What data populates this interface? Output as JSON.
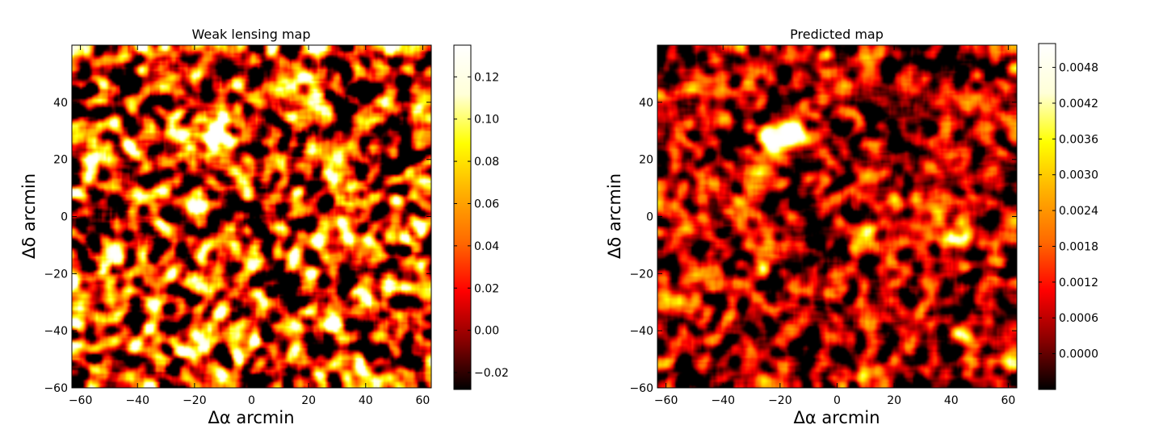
{
  "figure": {
    "colormap": "hot",
    "colormap_stops": [
      "#000000",
      "#8a0000",
      "#ff0000",
      "#ff6a00",
      "#ffb000",
      "#ffff00",
      "#ffffd8",
      "#ffffff"
    ]
  },
  "chart_data": [
    {
      "type": "heatmap",
      "title": "Weak lensing map",
      "xlabel": "Δα arcmin",
      "ylabel": "Δδ arcmin",
      "xlim": [
        -63,
        63
      ],
      "ylim": [
        -60,
        60
      ],
      "xticks": [
        -60,
        -40,
        -20,
        0,
        20,
        40,
        60
      ],
      "xtick_labels": [
        "−60",
        "−40",
        "−20",
        "0",
        "20",
        "40",
        "60"
      ],
      "yticks": [
        -60,
        -40,
        -20,
        0,
        20,
        40
      ],
      "ytick_labels": [
        "−60",
        "−40",
        "−20",
        "0",
        "20",
        "40"
      ],
      "colorbar": {
        "vmin": -0.028,
        "vmax": 0.135,
        "ticks": [
          -0.02,
          0.0,
          0.02,
          0.04,
          0.06,
          0.08,
          0.1,
          0.12
        ],
        "tick_labels": [
          "−0.02",
          "0.00",
          "0.02",
          "0.04",
          "0.06",
          "0.08",
          "0.10",
          "0.12"
        ]
      },
      "field": {
        "seed": 7,
        "background": 0.28,
        "contrast": 1.35,
        "hotspots": [
          {
            "x": -24,
            "y": 27,
            "amp": 0.85,
            "sigma": 2.5
          },
          {
            "x": -14,
            "y": 29,
            "amp": 0.8,
            "sigma": 2.5
          },
          {
            "x": -27,
            "y": 13,
            "amp": 0.6,
            "sigma": 2
          },
          {
            "x": 41,
            "y": -8,
            "amp": 0.7,
            "sigma": 2.5
          },
          {
            "x": 28,
            "y": 17,
            "amp": 0.55,
            "sigma": 2
          },
          {
            "x": 20,
            "y": -33,
            "amp": 0.5,
            "sigma": 2
          },
          {
            "x": -35,
            "y": -32,
            "amp": 0.5,
            "sigma": 2
          }
        ]
      }
    },
    {
      "type": "heatmap",
      "title": "Predicted map",
      "xlabel": "Δα arcmin",
      "ylabel": "Δδ arcmin",
      "xlim": [
        -63,
        63
      ],
      "ylim": [
        -60,
        60
      ],
      "xticks": [
        -60,
        -40,
        -20,
        0,
        20,
        40,
        60
      ],
      "xtick_labels": [
        "−60",
        "−40",
        "−20",
        "0",
        "20",
        "40",
        "60"
      ],
      "yticks": [
        -60,
        -40,
        -20,
        0,
        20,
        40
      ],
      "ytick_labels": [
        "−60",
        "−40",
        "−20",
        "0",
        "20",
        "40"
      ],
      "colorbar": {
        "vmin": -0.0006,
        "vmax": 0.0052,
        "ticks": [
          0.0,
          0.0006,
          0.0012,
          0.0018,
          0.0024,
          0.003,
          0.0036,
          0.0042,
          0.0048
        ],
        "tick_labels": [
          "0.0000",
          "0.0006",
          "0.0012",
          "0.0018",
          "0.0024",
          "0.0030",
          "0.0036",
          "0.0042",
          "0.0048"
        ]
      },
      "field": {
        "seed": 23,
        "background": 0.2,
        "contrast": 0.75,
        "hotspots": [
          {
            "x": -23,
            "y": 28,
            "amp": 0.9,
            "sigma": 2.8
          },
          {
            "x": -14,
            "y": 29,
            "amp": 0.95,
            "sigma": 2.8
          },
          {
            "x": -20,
            "y": 26,
            "amp": 0.6,
            "sigma": 4
          },
          {
            "x": -28,
            "y": 15,
            "amp": 0.35,
            "sigma": 3.5
          },
          {
            "x": 35,
            "y": 1,
            "amp": 0.45,
            "sigma": 3.5
          },
          {
            "x": 42,
            "y": -7,
            "amp": 0.45,
            "sigma": 3.5
          },
          {
            "x": 43,
            "y": -41,
            "amp": 0.4,
            "sigma": 3
          },
          {
            "x": 11,
            "y": -7,
            "amp": 0.4,
            "sigma": 3
          },
          {
            "x": -58,
            "y": -30,
            "amp": 0.35,
            "sigma": 3
          }
        ]
      }
    }
  ]
}
